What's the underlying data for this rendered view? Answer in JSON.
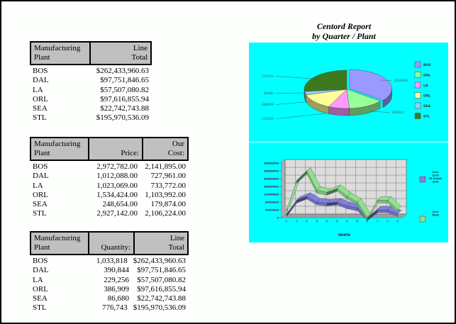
{
  "report": {
    "title_line1": "Centord Report",
    "title_line2": "by Quarter / Plant"
  },
  "table1": {
    "headers": [
      [
        "Manufacturing",
        "Plant"
      ],
      [
        "Line",
        "Total"
      ]
    ],
    "rows": [
      [
        "BOS",
        "$262,433,960.63"
      ],
      [
        "DAL",
        "$97,751,846.65"
      ],
      [
        "LA",
        "$57,507,080.82"
      ],
      [
        "ORL",
        "$97,616,855.94"
      ],
      [
        "SEA",
        "$22,742,743.88"
      ],
      [
        "STL",
        "$195,970,536.09"
      ]
    ]
  },
  "table2": {
    "headers": [
      [
        "Manufacturing",
        "Plant"
      ],
      [
        "",
        "Price:"
      ],
      [
        "Our",
        "Cost:"
      ]
    ],
    "rows": [
      [
        "BOS",
        "2,972,782.00",
        "2,141,895.00"
      ],
      [
        "DAL",
        "1,012,088.00",
        "727,961.00"
      ],
      [
        "LA",
        "1,023,069.00",
        "733,772.00"
      ],
      [
        "ORL",
        "1,534,424.00",
        "1,103,992.00"
      ],
      [
        "SEA",
        "248,654.00",
        "179,874.00"
      ],
      [
        "STL",
        "2,927,142.00",
        "2,106,224.00"
      ]
    ]
  },
  "table3": {
    "headers": [
      [
        "Manufacturing",
        "Plant"
      ],
      [
        "",
        "Quantity:"
      ],
      [
        "Line",
        "Total"
      ]
    ],
    "rows": [
      [
        "BOS",
        "1,033,818",
        "$262,433,960.63"
      ],
      [
        "DAL",
        "390,844",
        "$97,751,846.65"
      ],
      [
        "LA",
        "229,256",
        "$57,507,080.82"
      ],
      [
        "ORL",
        "386,909",
        "$97,616,855.94"
      ],
      [
        "SEA",
        "86,680",
        "$22,742,743.88"
      ],
      [
        "STL",
        "776,743",
        "$195,970,536.09"
      ]
    ]
  },
  "colors": {
    "chart_bg": "#00ffff",
    "header_bg": "#c0c0c0",
    "bos": "#9999ff",
    "dal": "#99ff99",
    "la": "#ff99ff",
    "orl": "#ffff99",
    "sea": "#99ccff",
    "stl": "#3c7a1e",
    "cost_series": "#8080e0",
    "total_series": "#90e090"
  },
  "chart_data": [
    {
      "type": "pie",
      "title": "",
      "categories": [
        "BOS",
        "DAL",
        "LA",
        "ORL",
        "SEA",
        "STL"
      ],
      "values": [
        1033818,
        390844,
        229256,
        386909,
        86680,
        776743
      ],
      "labels": [
        "1033818",
        "390844",
        "229256",
        "386909",
        "86680",
        "776743"
      ],
      "legend_position": "right"
    },
    {
      "type": "line",
      "title": "",
      "xlabel": "MONTH",
      "ylabel": "",
      "categories": [
        "01",
        "02",
        "03",
        "04",
        "05",
        "06",
        "07",
        "08",
        "09",
        "10",
        "11",
        "12"
      ],
      "yticks": [
        "0",
        "40000000",
        "80000000",
        "120000000",
        "160000000",
        "200000000",
        "240000000",
        "280000000"
      ],
      "ylim": [
        0,
        280000000
      ],
      "grid": true,
      "legend_position": "right",
      "series": [
        {
          "name": "Line Cost Of Goods Sold",
          "values": [
            20000000,
            90000000,
            110000000,
            80000000,
            75000000,
            80000000,
            60000000,
            50000000,
            0,
            40000000,
            40000000,
            20000000
          ]
        },
        {
          "name": "Line Total",
          "values": [
            40000000,
            190000000,
            240000000,
            140000000,
            130000000,
            150000000,
            110000000,
            80000000,
            0,
            90000000,
            90000000,
            40000000
          ]
        }
      ]
    }
  ]
}
